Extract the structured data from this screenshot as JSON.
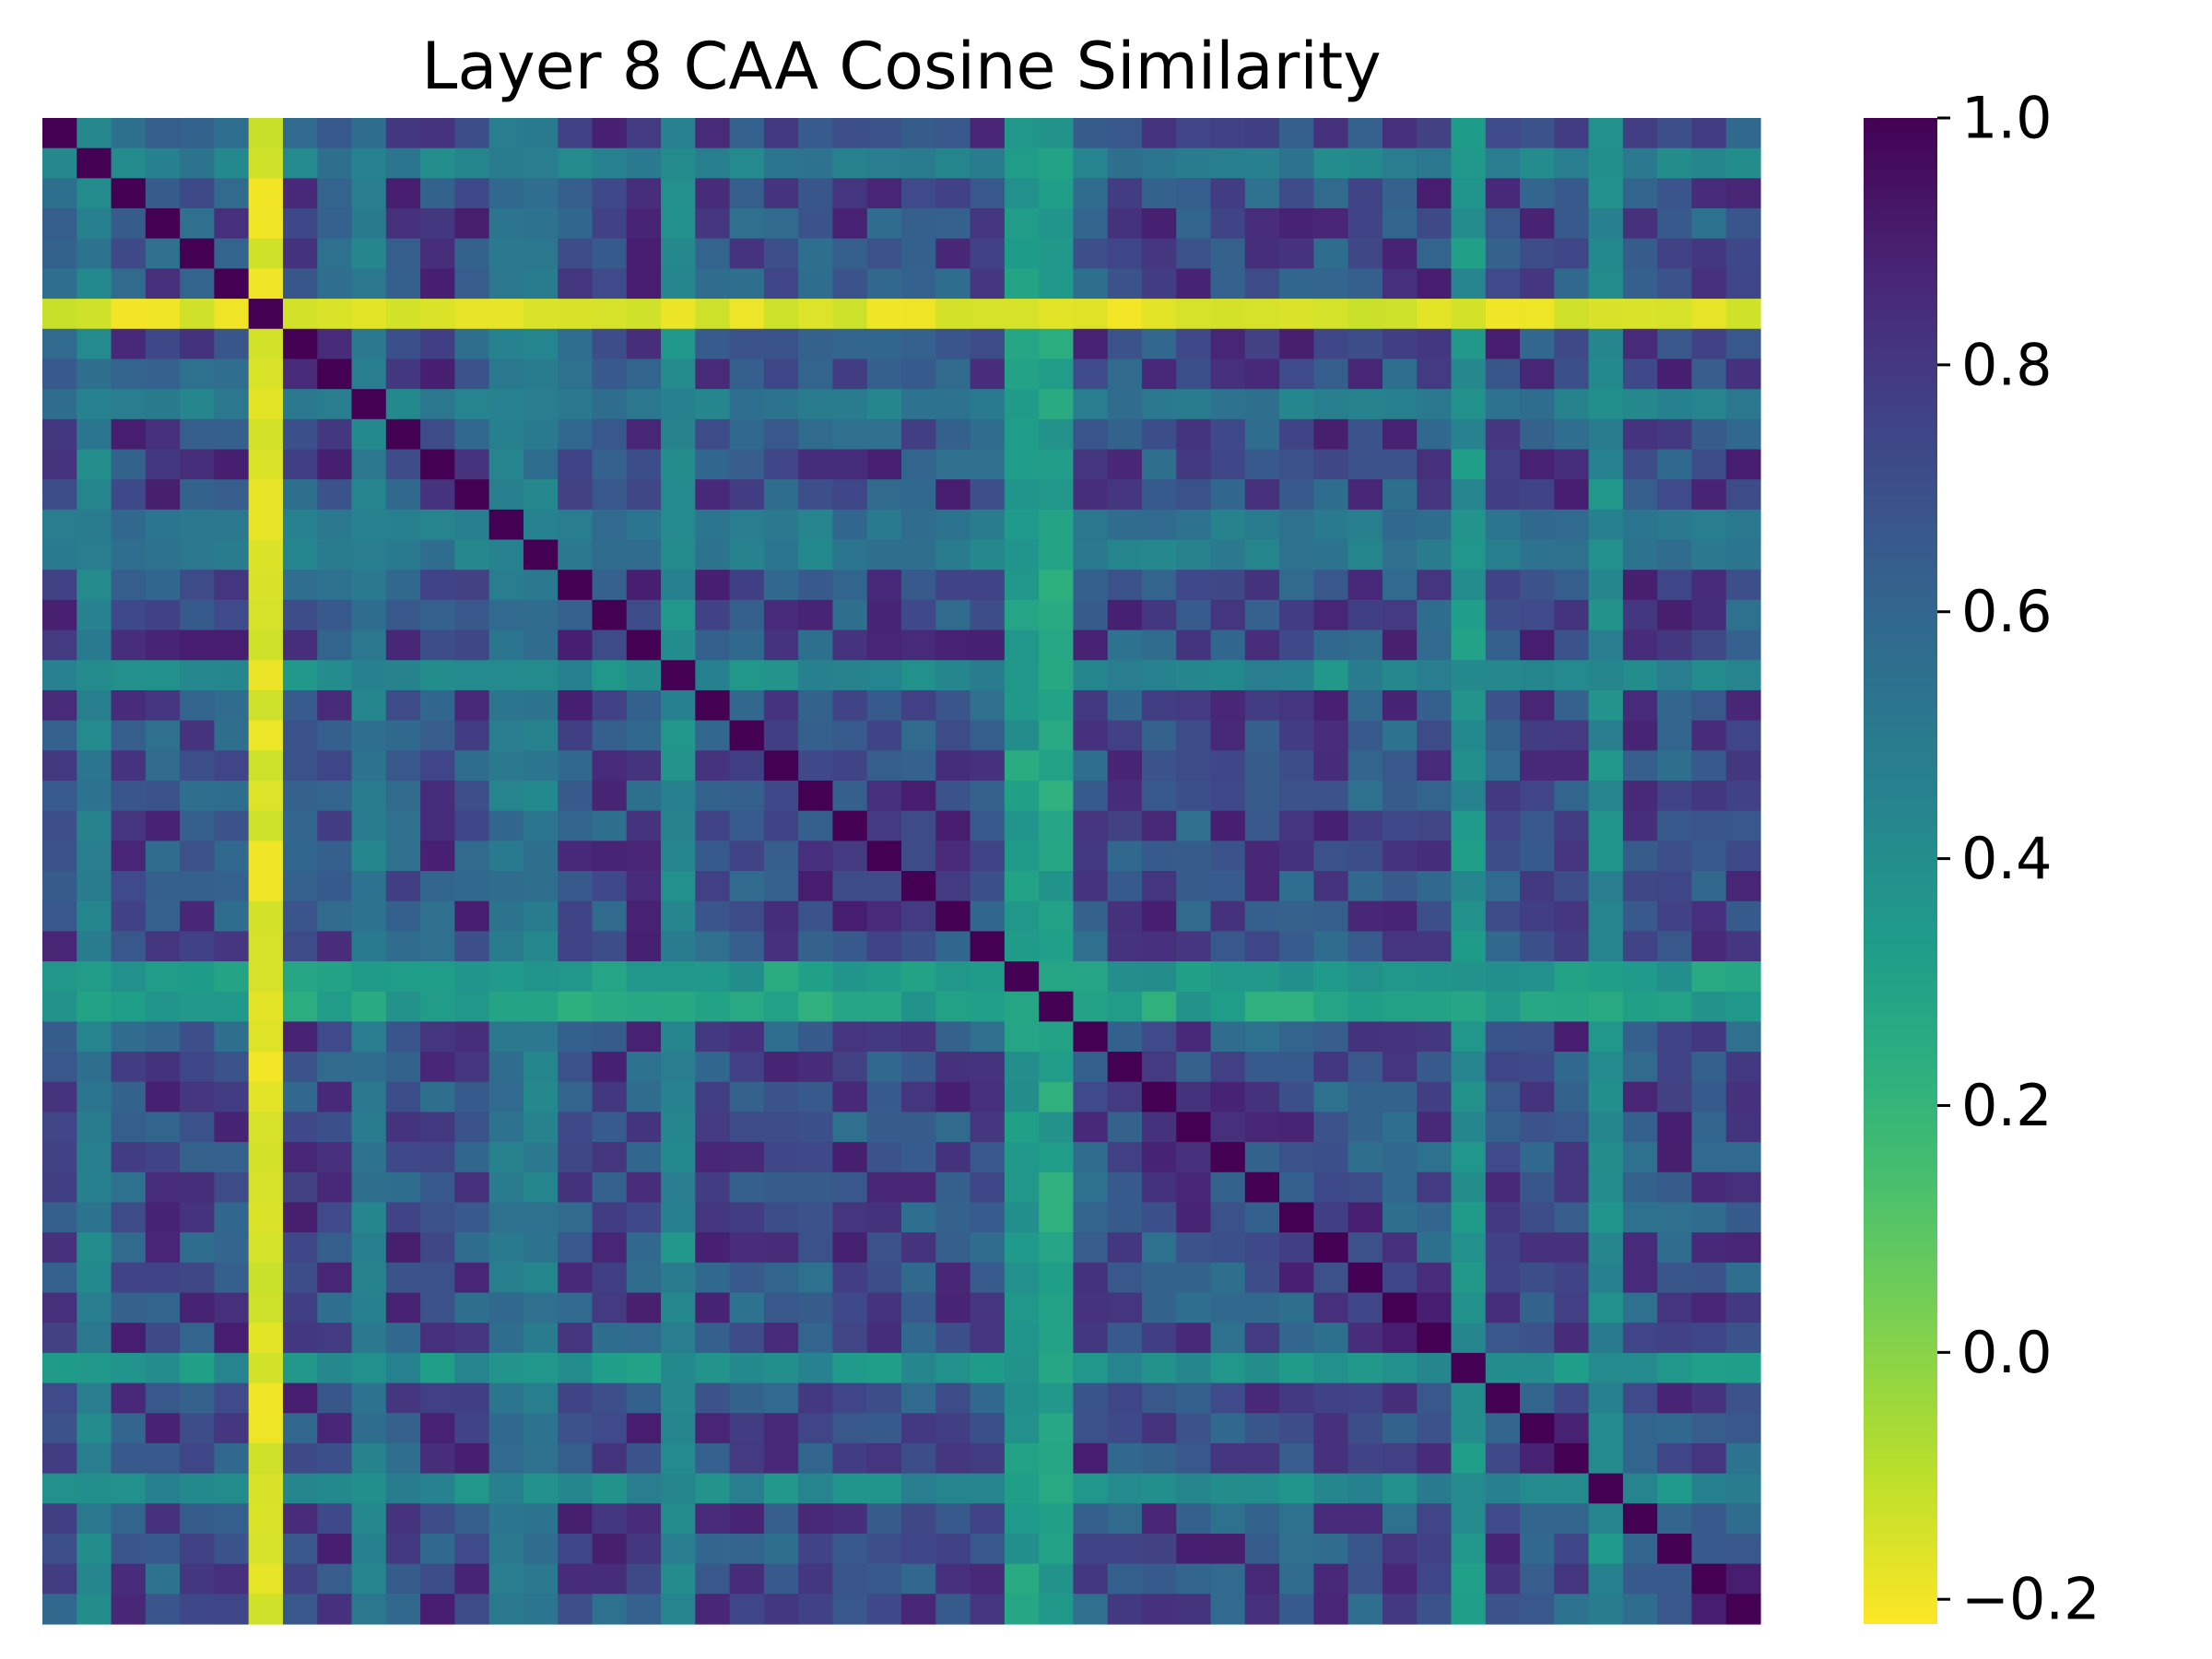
{
  "chart_data": {
    "type": "heatmap",
    "title": "Layer 8 CAA Cosine Similarity",
    "xlabel": "",
    "ylabel": "",
    "n": 50,
    "colormap": "viridis_r",
    "vmin": -0.22,
    "vmax": 1.0,
    "colorbar_ticks": [
      1.0,
      0.8,
      0.6,
      0.4,
      0.2,
      0.0,
      -0.2
    ],
    "colorbar_tick_labels": [
      "1.0",
      "0.8",
      "0.6",
      "0.4",
      "0.2",
      "0.0",
      "−0.2"
    ],
    "baseline_similarity": 0.72,
    "low_rows": [
      {
        "index": 6,
        "value": -0.2,
        "note": "yellow cross (anti-correlated with most vectors)"
      },
      {
        "index": 28,
        "value": 0.33,
        "note": "teal cross"
      },
      {
        "index": 41,
        "value": 0.38,
        "note": "teal cross"
      },
      {
        "index": 29,
        "value": 0.3,
        "note": "teal column"
      },
      {
        "index": 45,
        "value": 0.42,
        "note": "teal column"
      },
      {
        "index": 1,
        "value": 0.48,
        "note": "lighter row"
      },
      {
        "index": 18,
        "value": 0.42,
        "note": "lighter row"
      },
      {
        "index": 14,
        "value": 0.5,
        "note": "lighter row"
      },
      {
        "index": 9,
        "value": 0.5,
        "note": "lighter row"
      },
      {
        "index": 13,
        "value": 0.52,
        "note": "lighter row"
      }
    ],
    "diagonal_value": 1.0
  }
}
